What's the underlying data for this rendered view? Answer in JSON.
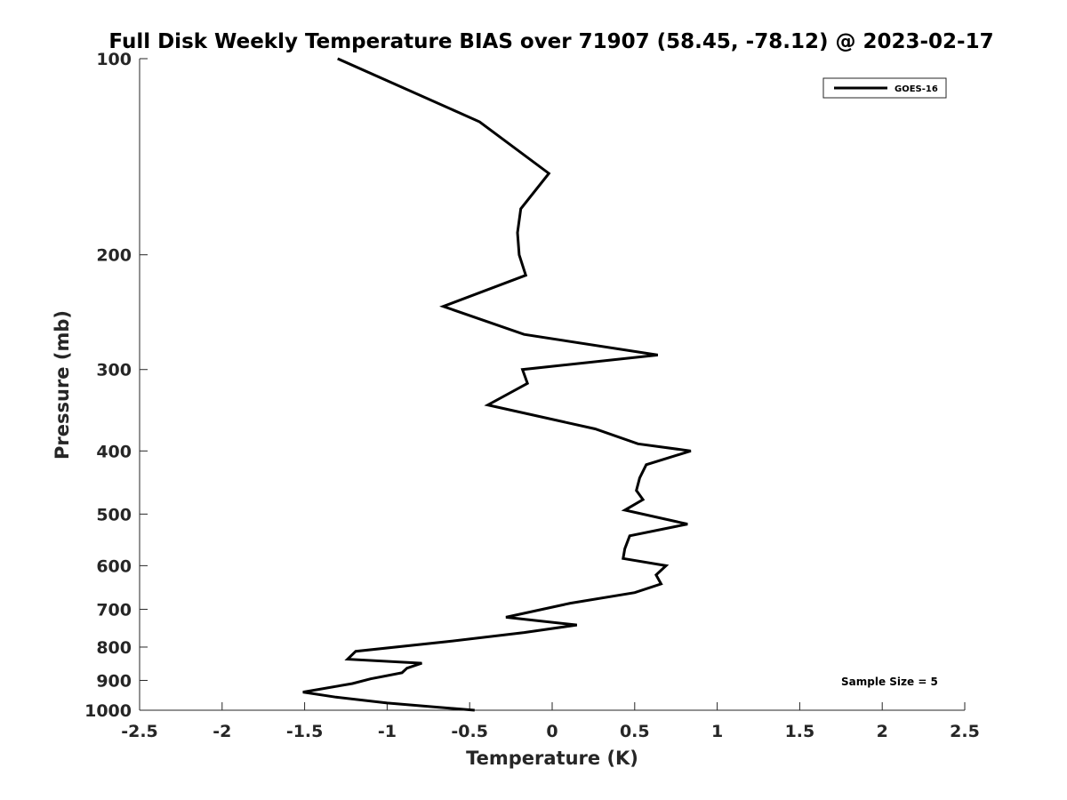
{
  "chart_data": {
    "type": "line",
    "title": "Full Disk Weekly Temperature BIAS over 71907 (58.45, -78.12) @ 2023-02-17",
    "xlabel": "Temperature (K)",
    "ylabel": "Pressure (mb)",
    "xlim": [
      -2.5,
      2.5
    ],
    "ylim": [
      100,
      1000
    ],
    "y_scale": "log",
    "y_reversed": true,
    "x_ticks": [
      "-2.5",
      "-2",
      "-1.5",
      "-1",
      "-0.5",
      "0",
      "0.5",
      "1",
      "1.5",
      "2",
      "2.5"
    ],
    "x_tick_values": [
      -2.5,
      -2,
      -1.5,
      -1,
      -0.5,
      0,
      0.5,
      1,
      1.5,
      2,
      2.5
    ],
    "y_ticks": [
      "100",
      "200",
      "300",
      "400",
      "500",
      "600",
      "700",
      "800",
      "900",
      "1000"
    ],
    "y_tick_values": [
      100,
      200,
      300,
      400,
      500,
      600,
      700,
      800,
      900,
      1000
    ],
    "grid": false,
    "legend_position": "top-right",
    "series": [
      {
        "name": "GOES-16",
        "color": "#000000",
        "points": [
          [
            -1.3,
            100
          ],
          [
            -0.44,
            125
          ],
          [
            -0.02,
            150
          ],
          [
            -0.19,
            170
          ],
          [
            -0.21,
            185
          ],
          [
            -0.2,
            200
          ],
          [
            -0.16,
            215
          ],
          [
            -0.66,
            240
          ],
          [
            -0.17,
            265
          ],
          [
            0.64,
            285
          ],
          [
            -0.18,
            300
          ],
          [
            -0.15,
            315
          ],
          [
            -0.39,
            340
          ],
          [
            0.26,
            370
          ],
          [
            0.52,
            390
          ],
          [
            0.84,
            400
          ],
          [
            0.57,
            420
          ],
          [
            0.53,
            440
          ],
          [
            0.51,
            460
          ],
          [
            0.55,
            475
          ],
          [
            0.44,
            493
          ],
          [
            0.82,
            518
          ],
          [
            0.47,
            540
          ],
          [
            0.44,
            565
          ],
          [
            0.43,
            585
          ],
          [
            0.69,
            600
          ],
          [
            0.63,
            620
          ],
          [
            0.66,
            640
          ],
          [
            0.5,
            660
          ],
          [
            0.11,
            685
          ],
          [
            -0.28,
            720
          ],
          [
            0.15,
            740
          ],
          [
            -0.17,
            760
          ],
          [
            -0.64,
            785
          ],
          [
            -1.19,
            812
          ],
          [
            -1.24,
            835
          ],
          [
            -0.79,
            847
          ],
          [
            -0.88,
            862
          ],
          [
            -0.91,
            876
          ],
          [
            -1.1,
            895
          ],
          [
            -1.21,
            910
          ],
          [
            -1.51,
            938
          ],
          [
            -1.31,
            955
          ],
          [
            -1.0,
            975
          ],
          [
            -0.47,
            1000
          ]
        ]
      }
    ],
    "annotations": [
      "Sample Size = 5"
    ]
  }
}
